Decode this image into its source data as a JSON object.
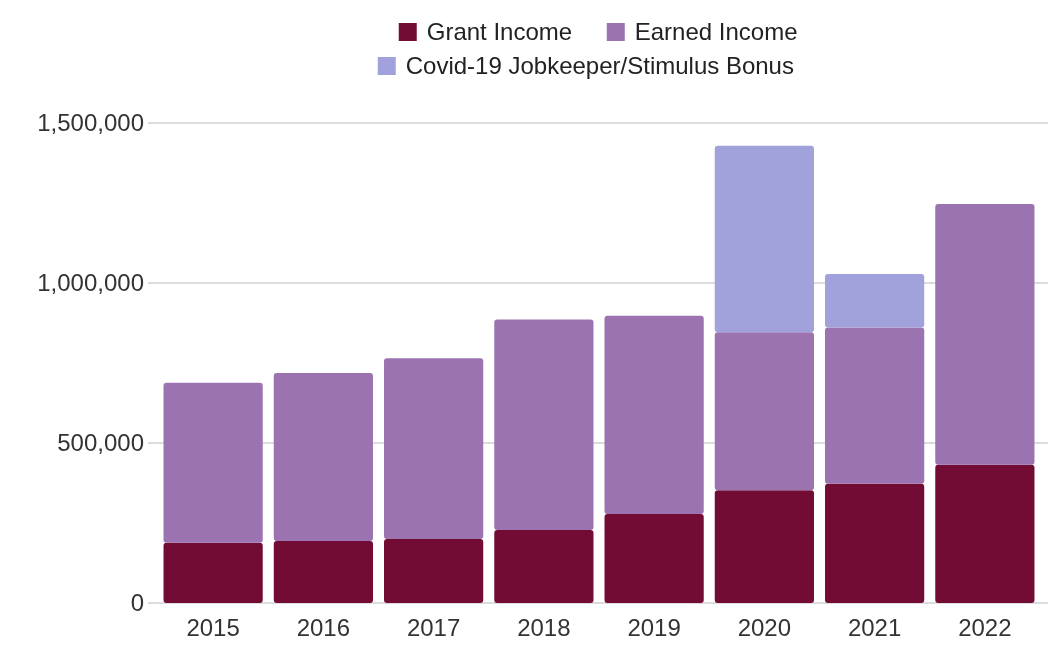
{
  "chart_data": {
    "type": "bar",
    "stacked": true,
    "categories": [
      "2015",
      "2016",
      "2017",
      "2018",
      "2019",
      "2020",
      "2021",
      "2022"
    ],
    "series": [
      {
        "name": "Grant Income",
        "color": "#730c35",
        "values": [
          188000,
          194000,
          200000,
          228000,
          278000,
          352000,
          373000,
          432000
        ]
      },
      {
        "name": "Earned Income",
        "color": "#9a73b0",
        "values": [
          500000,
          525000,
          565000,
          658000,
          620000,
          494000,
          488000,
          815000
        ]
      },
      {
        "name": "Covid-19 Jobkeeper/Stimulus Bonus",
        "color": "#a1a2db",
        "values": [
          0,
          0,
          0,
          0,
          0,
          583000,
          167000,
          0
        ]
      }
    ],
    "ylim": [
      0,
      1500000
    ],
    "yticks": [
      {
        "value": 0,
        "label": "0"
      },
      {
        "value": 500000,
        "label": "500,000"
      },
      {
        "value": 1000000,
        "label": "1,000,000"
      },
      {
        "value": 1500000,
        "label": "1,500,000"
      }
    ],
    "grid": "y",
    "legend": "top"
  }
}
